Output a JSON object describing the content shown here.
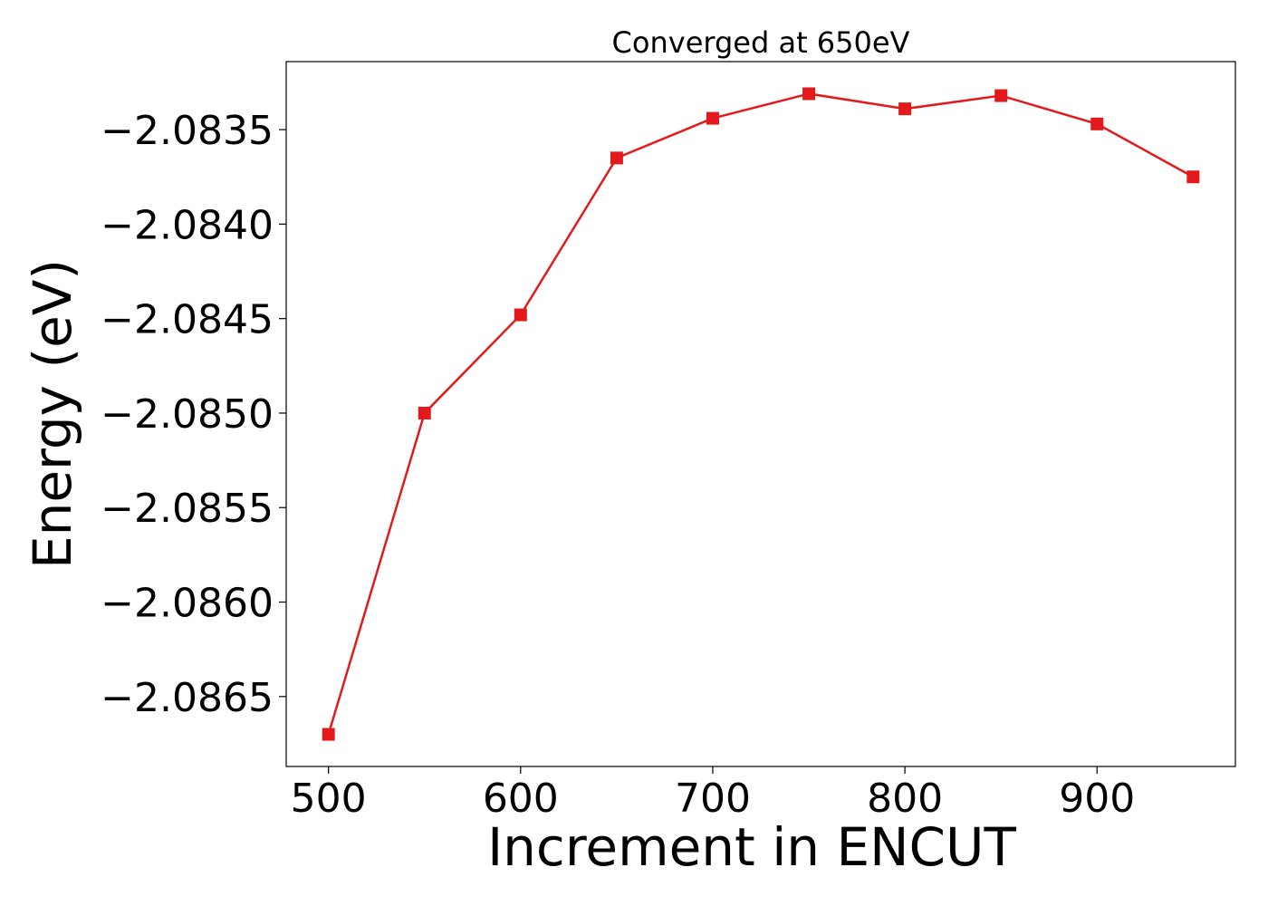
{
  "chart_data": {
    "type": "line",
    "title": "Converged at 650eV",
    "xlabel": "Increment in ENCUT",
    "ylabel": "Energy (eV)",
    "x": [
      500,
      550,
      600,
      650,
      700,
      750,
      800,
      850,
      900,
      950
    ],
    "series": [
      {
        "values": [
          -2.0867,
          -2.085,
          -2.08448,
          -2.08365,
          -2.08344,
          -2.08331,
          -2.08339,
          -2.08332,
          -2.08347,
          -2.08375
        ],
        "color": "#e31a1c",
        "marker": "square"
      }
    ],
    "xlim": [
      478,
      972
    ],
    "ylim": [
      -2.08687,
      -2.08314
    ],
    "xticks": [
      500,
      600,
      700,
      800,
      900
    ],
    "xtick_labels": [
      "500",
      "600",
      "700",
      "800",
      "900"
    ],
    "yticks": [
      -2.0865,
      -2.086,
      -2.0855,
      -2.085,
      -2.0845,
      -2.084,
      -2.0835
    ],
    "ytick_labels": [
      "−2.0865",
      "−2.0860",
      "−2.0855",
      "−2.0850",
      "−2.0845",
      "−2.0840",
      "−2.0835"
    ],
    "grid": false,
    "legend": "none"
  }
}
